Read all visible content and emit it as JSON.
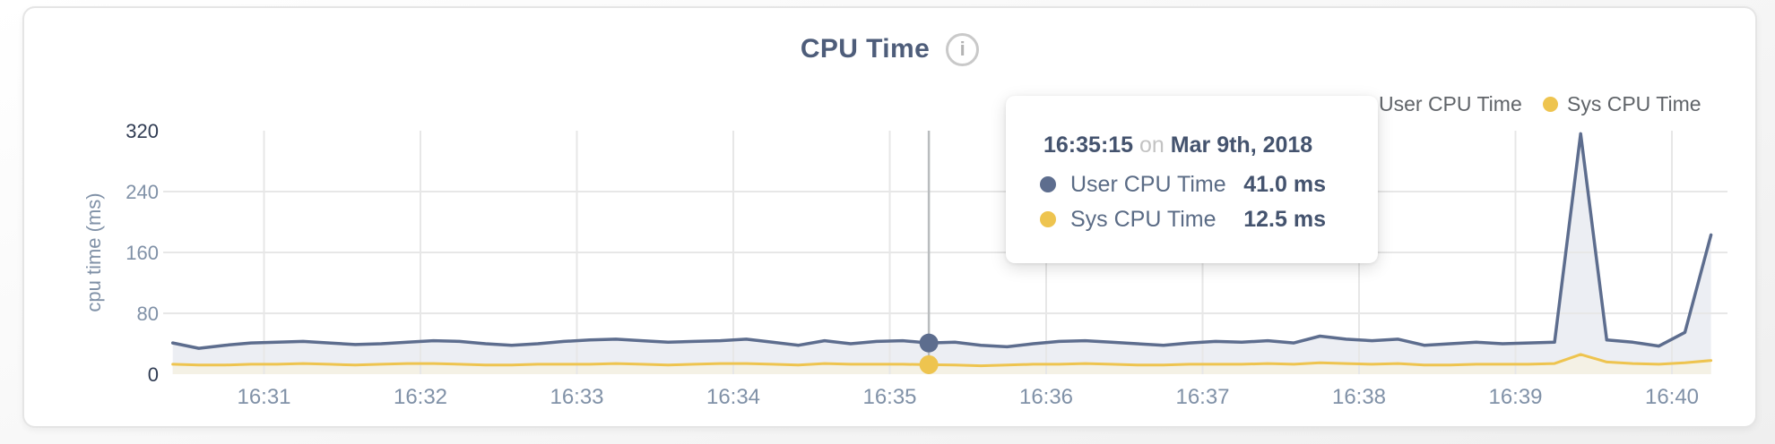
{
  "header": {
    "title": "CPU Time",
    "info_glyph": "i"
  },
  "colors": {
    "user": "#5d6d8e",
    "user_fill": "#eceef3",
    "sys": "#eec44f",
    "sys_fill": "#f4f1e5",
    "grid": "#e7e7e7",
    "marker_line": "#b9bcbe",
    "tick_strong": "#2f3b52",
    "tick_light": "#8091a7",
    "title": "#4e5d7a",
    "legend_text": "#606469",
    "tooltip_dark": "#44536e",
    "tooltip_label": "#5a6b85",
    "tooltip_muted": "#c3c3c3"
  },
  "legend": [
    {
      "label": "User CPU Time",
      "color_key": "user"
    },
    {
      "label": "Sys CPU Time",
      "color_key": "sys"
    }
  ],
  "tooltip": {
    "time": "16:35:15",
    "conjunction": "on",
    "date": "Mar 9th, 2018",
    "rows": [
      {
        "label": "User CPU Time",
        "value": "41.0 ms",
        "color_key": "user"
      },
      {
        "label": "Sys CPU Time",
        "value": "12.5 ms",
        "color_key": "sys"
      }
    ]
  },
  "chart_data": {
    "type": "area",
    "title": "CPU Time",
    "ylabel": "cpu time (ms)",
    "xlabel": "",
    "ylim": [
      0,
      320
    ],
    "grid": true,
    "legend_position": "top-right",
    "y_ticks": [
      {
        "label": "320",
        "value": 320,
        "strong": true,
        "line": false
      },
      {
        "label": "240",
        "value": 240,
        "strong": false,
        "line": true
      },
      {
        "label": "160",
        "value": 160,
        "strong": false,
        "line": true
      },
      {
        "label": "80",
        "value": 80,
        "strong": false,
        "line": true
      },
      {
        "label": "0",
        "value": 0,
        "strong": true,
        "line": false
      }
    ],
    "x_ticks": [
      "16:31",
      "16:32",
      "16:33",
      "16:34",
      "16:35",
      "16:36",
      "16:37",
      "16:38",
      "16:39",
      "16:40"
    ],
    "x": [
      "16:30:25",
      "16:30:35",
      "16:30:45",
      "16:30:55",
      "16:31:05",
      "16:31:15",
      "16:31:25",
      "16:31:35",
      "16:31:45",
      "16:31:55",
      "16:32:05",
      "16:32:15",
      "16:32:25",
      "16:32:35",
      "16:32:45",
      "16:32:55",
      "16:33:05",
      "16:33:15",
      "16:33:25",
      "16:33:35",
      "16:33:45",
      "16:33:55",
      "16:34:05",
      "16:34:15",
      "16:34:25",
      "16:34:35",
      "16:34:45",
      "16:34:55",
      "16:35:05",
      "16:35:15",
      "16:35:25",
      "16:35:35",
      "16:35:45",
      "16:35:55",
      "16:36:05",
      "16:36:15",
      "16:36:25",
      "16:36:35",
      "16:36:45",
      "16:36:55",
      "16:37:05",
      "16:37:15",
      "16:37:25",
      "16:37:35",
      "16:37:45",
      "16:37:55",
      "16:38:05",
      "16:38:15",
      "16:38:25",
      "16:38:35",
      "16:38:45",
      "16:38:55",
      "16:39:05",
      "16:39:15",
      "16:39:25",
      "16:39:35",
      "16:39:45",
      "16:39:55",
      "16:40:05",
      "16:40:15"
    ],
    "series": [
      {
        "name": "User CPU Time",
        "color_key": "user",
        "fill_key": "user_fill",
        "unit": "ms",
        "values": [
          41,
          34,
          38,
          41,
          42,
          43,
          41,
          39,
          40,
          42,
          44,
          43,
          40,
          38,
          40,
          43,
          45,
          46,
          44,
          42,
          43,
          44,
          46,
          42,
          38,
          44,
          40,
          43,
          44,
          41,
          42,
          38,
          36,
          40,
          43,
          44,
          42,
          40,
          38,
          41,
          43,
          42,
          44,
          41,
          50,
          46,
          44,
          46,
          38,
          40,
          42,
          40,
          41,
          42,
          316,
          45,
          42,
          37,
          55,
          183
        ]
      },
      {
        "name": "Sys CPU Time",
        "color_key": "sys",
        "fill_key": "sys_fill",
        "unit": "ms",
        "values": [
          13,
          12,
          12,
          13,
          13,
          14,
          13,
          12,
          13,
          14,
          14,
          13,
          12,
          12,
          13,
          13,
          13,
          14,
          13,
          12,
          13,
          14,
          14,
          13,
          12,
          14,
          13,
          13,
          13,
          12.5,
          12,
          11,
          12,
          13,
          13,
          14,
          13,
          12,
          12,
          13,
          13,
          13,
          14,
          13,
          15,
          14,
          13,
          14,
          12,
          12,
          13,
          13,
          13,
          14,
          26,
          16,
          14,
          13,
          15,
          18
        ]
      }
    ],
    "marker": {
      "time": "16:35:15",
      "date": "Mar 9th, 2018",
      "user_value_ms": 41.0,
      "sys_value_ms": 12.5
    }
  }
}
